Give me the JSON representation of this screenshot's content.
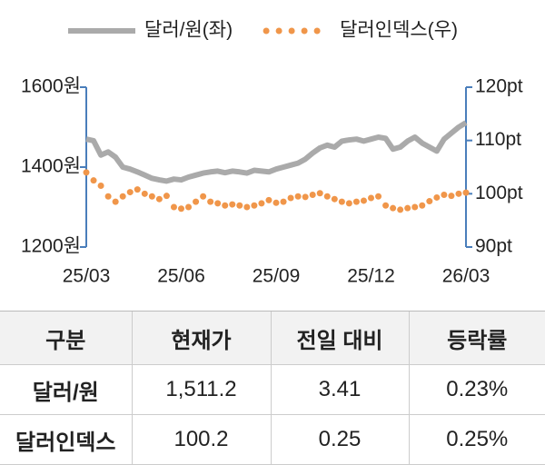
{
  "chart_data": {
    "type": "line",
    "categories": [
      "25/03",
      null,
      null,
      null,
      null,
      null,
      null,
      null,
      null,
      null,
      null,
      null,
      null,
      "25/06",
      null,
      null,
      null,
      null,
      null,
      null,
      null,
      null,
      null,
      null,
      null,
      null,
      "25/09",
      null,
      null,
      null,
      null,
      null,
      null,
      null,
      null,
      null,
      null,
      null,
      null,
      "25/12",
      null,
      null,
      null,
      null,
      null,
      null,
      null,
      null,
      null,
      null,
      null,
      null,
      "26/03"
    ],
    "series": [
      {
        "name": "달러/원(좌)",
        "color": "#aaaaaa",
        "style": "line",
        "values": [
          1470,
          1466,
          1430,
          1438,
          1425,
          1400,
          1395,
          1388,
          1380,
          1372,
          1368,
          1365,
          1370,
          1368,
          1375,
          1380,
          1385,
          1388,
          1390,
          1386,
          1390,
          1388,
          1385,
          1392,
          1390,
          1388,
          1395,
          1400,
          1405,
          1410,
          1420,
          1435,
          1448,
          1455,
          1450,
          1465,
          1468,
          1470,
          1465,
          1470,
          1475,
          1472,
          1445,
          1450,
          1465,
          1475,
          1460,
          1450,
          1440,
          1470,
          1485,
          1500,
          1511.2
        ]
      },
      {
        "name": "달러인덱스(우)",
        "color": "#f0964a",
        "style": "dots",
        "axis": "y2",
        "values": [
          104,
          102.5,
          101.5,
          99.5,
          98.5,
          99.5,
          100.3,
          100.8,
          100,
          99.5,
          99,
          99.6,
          97.5,
          97.2,
          97.5,
          98.5,
          99.5,
          98.5,
          98.2,
          97.8,
          98,
          97.8,
          97.5,
          97.8,
          98.2,
          98.8,
          98.3,
          98.5,
          99.2,
          99.5,
          99.4,
          99.8,
          100.1,
          99.5,
          99,
          98.5,
          98.2,
          98.5,
          98.7,
          99.2,
          99.5,
          97.8,
          97.3,
          97,
          97.3,
          97.5,
          97.8,
          98.6,
          99.3,
          99.8,
          99.6,
          100,
          100.2
        ]
      }
    ],
    "ylim": [
      1200,
      1600
    ],
    "yticks": [
      {
        "value": 1200,
        "label": "1200원"
      },
      {
        "value": 1400,
        "label": "1400원"
      },
      {
        "value": 1600,
        "label": "1600원"
      }
    ],
    "y2lim": [
      90,
      120
    ],
    "y2ticks": [
      {
        "value": 90,
        "label": "90pt"
      },
      {
        "value": 100,
        "label": "100pt"
      },
      {
        "value": 110,
        "label": "110pt"
      },
      {
        "value": 120,
        "label": "120pt"
      }
    ],
    "axis_color": "#4a7ebb"
  },
  "table": {
    "header": [
      "구분",
      "현재가",
      "전일 대비",
      "등락률"
    ],
    "rows": [
      [
        "달러/원",
        "1,511.2",
        "3.41",
        "0.23%"
      ],
      [
        "달러인덱스",
        "100.2",
        "0.25",
        "0.25%"
      ]
    ]
  }
}
